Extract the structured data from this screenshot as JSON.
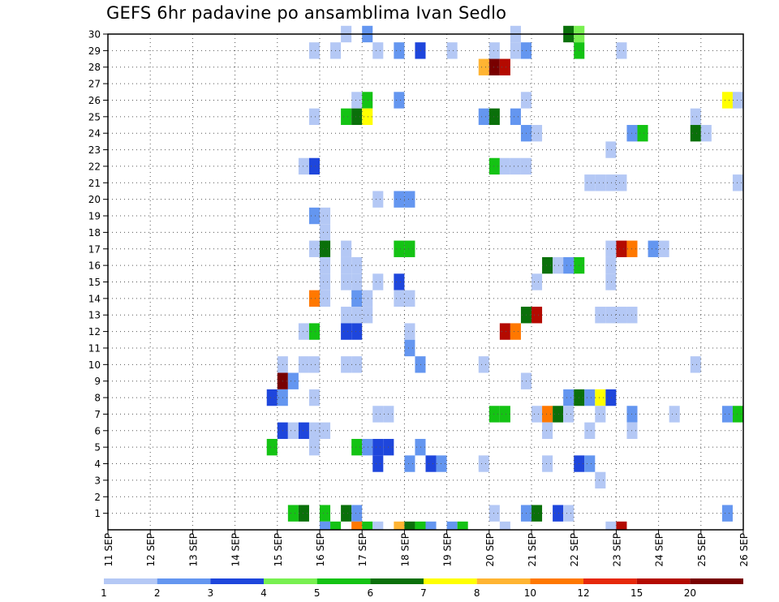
{
  "chart_data": {
    "type": "heatmap",
    "title": "GEFS 6hr padavine po ansamblima Ivan Sedlo",
    "x_tick_labels": [
      "11 SEP",
      "12 SEP",
      "13 SEP",
      "14 SEP",
      "15 SEP",
      "16 SEP",
      "17 SEP",
      "18 SEP",
      "19 SEP",
      "20 SEP",
      "21 SEP",
      "22 SEP",
      "23 SEP",
      "24 SEP",
      "25 SEP",
      "26 SEP"
    ],
    "x_range_days": [
      11,
      26
    ],
    "step_hours": 6,
    "y_tick_labels": [
      "1",
      "2",
      "3",
      "4",
      "5",
      "6",
      "7",
      "8",
      "9",
      "10",
      "11",
      "12",
      "13",
      "14",
      "15",
      "16",
      "17",
      "18",
      "19",
      "20",
      "21",
      "22",
      "23",
      "24",
      "25",
      "26",
      "27",
      "28",
      "29",
      "30"
    ],
    "y_range": [
      0,
      30
    ],
    "grid": true,
    "legend": {
      "position": "bottom",
      "labels": [
        "1",
        "2",
        "3",
        "4",
        "5",
        "6",
        "7",
        "8",
        "10",
        "12",
        "15",
        "20"
      ],
      "colors": [
        "#b4c8f5",
        "#6496f0",
        "#1e46dc",
        "#78f050",
        "#14c314",
        "#0a700a",
        "#ffff00",
        "#ffb432",
        "#ff7800",
        "#e6280a",
        "#b40a00",
        "#780000"
      ]
    },
    "cells": [
      [
        30,
        20.5,
        1
      ],
      [
        30,
        21.75,
        6
      ],
      [
        30,
        22,
        4
      ],
      [
        30,
        16.5,
        1
      ],
      [
        30,
        17.0,
        2
      ],
      [
        29,
        15.75,
        1
      ],
      [
        29,
        16.25,
        1
      ],
      [
        29,
        17.25,
        1
      ],
      [
        29,
        17.75,
        2
      ],
      [
        29,
        18.25,
        3
      ],
      [
        29,
        19,
        1
      ],
      [
        29,
        20,
        1
      ],
      [
        29,
        20.5,
        1
      ],
      [
        29,
        20.75,
        2
      ],
      [
        29,
        22,
        5
      ],
      [
        29,
        23,
        1
      ],
      [
        28,
        19.75,
        8
      ],
      [
        28,
        20.0,
        20
      ],
      [
        28,
        20.25,
        15
      ],
      [
        26,
        16.75,
        1
      ],
      [
        26,
        17,
        5
      ],
      [
        26,
        17.75,
        2
      ],
      [
        26,
        20.75,
        1
      ],
      [
        26,
        25.5,
        7
      ],
      [
        26,
        25.75,
        1
      ],
      [
        25,
        15.75,
        1
      ],
      [
        25,
        16.5,
        5
      ],
      [
        25,
        16.75,
        6
      ],
      [
        25,
        17,
        7
      ],
      [
        25,
        19.75,
        2
      ],
      [
        25,
        20,
        6
      ],
      [
        25,
        20.5,
        2
      ],
      [
        25,
        24.75,
        1
      ],
      [
        24,
        20.75,
        2
      ],
      [
        24,
        21,
        1
      ],
      [
        24,
        23.25,
        2
      ],
      [
        24,
        23.5,
        5
      ],
      [
        24,
        24.75,
        6
      ],
      [
        24,
        25,
        1
      ],
      [
        23,
        22.75,
        1
      ],
      [
        22,
        15.5,
        1
      ],
      [
        22,
        15.75,
        3
      ],
      [
        22,
        20,
        5
      ],
      [
        22,
        20.25,
        1
      ],
      [
        22,
        20.5,
        1
      ],
      [
        22,
        20.75,
        1
      ],
      [
        21,
        22.25,
        1
      ],
      [
        21,
        22.5,
        1
      ],
      [
        21,
        22.75,
        1
      ],
      [
        21,
        23,
        1
      ],
      [
        21,
        25.75,
        1
      ],
      [
        20,
        17.25,
        1
      ],
      [
        20,
        17.75,
        2
      ],
      [
        20,
        18.0,
        2
      ],
      [
        19,
        15.75,
        2
      ],
      [
        19,
        16.0,
        1
      ],
      [
        18,
        16.0,
        1
      ],
      [
        17,
        15.75,
        1
      ],
      [
        17,
        16,
        6
      ],
      [
        17,
        16.5,
        1
      ],
      [
        17,
        17.75,
        5
      ],
      [
        17,
        18,
        5
      ],
      [
        17,
        22.75,
        1
      ],
      [
        17,
        23.0,
        15
      ],
      [
        17,
        23.25,
        10
      ],
      [
        17,
        23.75,
        2
      ],
      [
        17,
        24.0,
        1
      ],
      [
        16,
        16,
        1
      ],
      [
        16,
        16.5,
        1
      ],
      [
        16,
        16.75,
        1
      ],
      [
        16,
        21.25,
        6
      ],
      [
        16,
        21.5,
        1
      ],
      [
        16,
        21.75,
        2
      ],
      [
        16,
        22,
        5
      ],
      [
        16,
        22.75,
        1
      ],
      [
        15,
        16.0,
        1
      ],
      [
        15,
        16.5,
        1
      ],
      [
        15,
        16.75,
        1
      ],
      [
        15,
        17.25,
        1
      ],
      [
        15,
        17.75,
        3
      ],
      [
        15,
        21.0,
        1
      ],
      [
        15,
        22.75,
        1
      ],
      [
        14,
        15.75,
        10
      ],
      [
        14,
        16.0,
        1
      ],
      [
        14,
        16.75,
        2
      ],
      [
        14,
        17.0,
        1
      ],
      [
        14,
        17.75,
        1
      ],
      [
        14,
        18.0,
        1
      ],
      [
        13,
        16.5,
        1
      ],
      [
        13,
        16.75,
        1
      ],
      [
        13,
        17.0,
        1
      ],
      [
        13,
        20.75,
        6
      ],
      [
        13,
        21.0,
        15
      ],
      [
        13,
        22.5,
        1
      ],
      [
        13,
        22.75,
        1
      ],
      [
        13,
        23.0,
        1
      ],
      [
        13,
        23.25,
        1
      ],
      [
        12,
        15.5,
        1
      ],
      [
        12,
        15.75,
        5
      ],
      [
        12,
        16.5,
        3
      ],
      [
        12,
        16.75,
        3
      ],
      [
        12,
        18,
        1
      ],
      [
        12,
        20.25,
        15
      ],
      [
        12,
        20.5,
        10
      ],
      [
        11,
        18,
        2
      ],
      [
        10,
        15,
        1
      ],
      [
        10,
        15.5,
        1
      ],
      [
        10,
        15.75,
        1
      ],
      [
        10,
        16.5,
        1
      ],
      [
        10,
        16.75,
        1
      ],
      [
        10,
        18.25,
        2
      ],
      [
        10,
        19.75,
        1
      ],
      [
        10,
        24.75,
        1
      ],
      [
        9,
        15,
        20
      ],
      [
        9,
        15.25,
        2
      ],
      [
        9,
        20.75,
        1
      ],
      [
        8,
        14.75,
        3
      ],
      [
        8,
        15,
        2
      ],
      [
        8,
        15.75,
        1
      ],
      [
        8,
        21.75,
        2
      ],
      [
        8,
        22,
        6
      ],
      [
        8,
        22.25,
        2
      ],
      [
        8,
        22.5,
        7
      ],
      [
        8,
        22.75,
        3
      ],
      [
        7,
        17.25,
        1
      ],
      [
        7,
        17.5,
        1
      ],
      [
        7,
        20,
        5
      ],
      [
        7,
        20.25,
        5
      ],
      [
        7,
        21.0,
        1
      ],
      [
        7,
        21.25,
        10
      ],
      [
        7,
        21.5,
        6
      ],
      [
        7,
        21.75,
        1
      ],
      [
        7,
        22.5,
        1
      ],
      [
        7,
        23.25,
        2
      ],
      [
        7,
        24.25,
        1
      ],
      [
        7,
        25.5,
        2
      ],
      [
        7,
        25.75,
        5
      ],
      [
        6,
        15.0,
        3
      ],
      [
        6,
        15.25,
        1
      ],
      [
        6,
        15.5,
        3
      ],
      [
        6,
        15.75,
        1
      ],
      [
        6,
        16.0,
        1
      ],
      [
        6,
        21.25,
        1
      ],
      [
        6,
        22.25,
        1
      ],
      [
        6,
        23.25,
        1
      ],
      [
        5,
        14.75,
        5
      ],
      [
        5,
        15.75,
        1
      ],
      [
        5,
        16.75,
        5
      ],
      [
        5,
        17.0,
        2
      ],
      [
        5,
        17.25,
        3
      ],
      [
        5,
        17.5,
        3
      ],
      [
        5,
        18.25,
        2
      ],
      [
        4,
        17.25,
        3
      ],
      [
        4,
        18,
        2
      ],
      [
        4,
        18.5,
        3
      ],
      [
        4,
        18.75,
        2
      ],
      [
        4,
        19.75,
        1
      ],
      [
        4,
        21.25,
        1
      ],
      [
        4,
        22.0,
        3
      ],
      [
        4,
        22.25,
        2
      ],
      [
        3,
        22.5,
        1
      ],
      [
        1,
        15.25,
        5
      ],
      [
        1,
        15.5,
        6
      ],
      [
        1,
        16.0,
        5
      ],
      [
        1,
        16.5,
        6
      ],
      [
        1,
        16.75,
        2
      ],
      [
        1,
        20.0,
        1
      ],
      [
        1,
        20.75,
        2
      ],
      [
        1,
        21.0,
        6
      ],
      [
        1,
        21.5,
        3
      ],
      [
        1,
        21.75,
        1
      ],
      [
        1,
        25.5,
        2
      ],
      [
        0,
        16.0,
        2
      ],
      [
        0,
        16.25,
        5
      ],
      [
        0,
        16.75,
        10
      ],
      [
        0,
        17.0,
        5
      ],
      [
        0,
        17.25,
        1
      ],
      [
        0,
        17.75,
        8
      ],
      [
        0,
        18.0,
        6
      ],
      [
        0,
        18.25,
        5
      ],
      [
        0,
        18.5,
        2
      ],
      [
        0,
        19.0,
        2
      ],
      [
        0,
        19.25,
        5
      ],
      [
        0,
        20.25,
        1
      ],
      [
        0,
        22.75,
        1
      ],
      [
        0,
        23.0,
        15
      ]
    ]
  }
}
